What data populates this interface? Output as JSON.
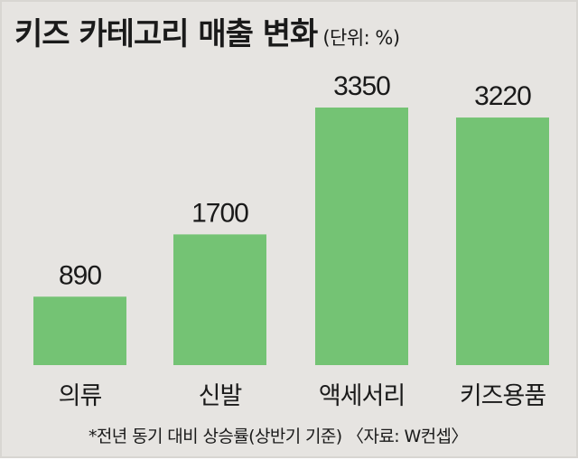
{
  "header": {
    "title": "키즈 카테고리 매출 변화",
    "unit": "(단위: %)"
  },
  "footnote": "*전년 동기 대비 상승률(상반기 기준) 〈자료: W컨셉〉",
  "colors": {
    "bar": "#74c374",
    "background": "#e6e4e1",
    "text": "#1a1a1a"
  },
  "chart_data": {
    "type": "bar",
    "categories": [
      "의류",
      "신발",
      "액세서리",
      "키즈용품"
    ],
    "values": [
      890,
      1700,
      3350,
      3220
    ],
    "data_labels": [
      "890",
      "1700",
      "3350",
      "3220"
    ],
    "title": "키즈 카테고리 매출 변화",
    "xlabel": "",
    "ylabel": "",
    "ylim": [
      0,
      3350
    ],
    "grid": false,
    "legend": "none"
  }
}
